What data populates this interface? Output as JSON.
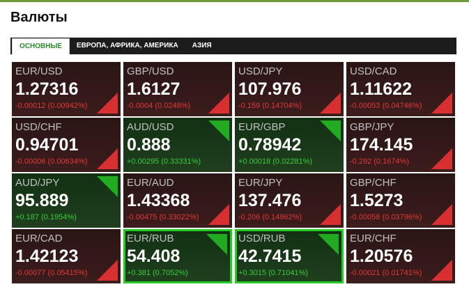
{
  "header": {
    "title": "Валюты"
  },
  "tabs": [
    {
      "label": "ОСНОВНЫЕ",
      "active": true
    },
    {
      "label": "ЕВРОПА, АФРИКА, АМЕРИКА",
      "active": false
    },
    {
      "label": "АЗИЯ",
      "active": false
    }
  ],
  "tiles": [
    {
      "pair": "EUR/USD",
      "rate": "1.27316",
      "change": "-0.00012 (0.00942%)",
      "direction": "down",
      "highlighted": false
    },
    {
      "pair": "GBP/USD",
      "rate": "1.6127",
      "change": "-0.0004 (0.0248%)",
      "direction": "down",
      "highlighted": false
    },
    {
      "pair": "USD/JPY",
      "rate": "107.976",
      "change": "-0.159 (0.14704%)",
      "direction": "down",
      "highlighted": false
    },
    {
      "pair": "USD/CAD",
      "rate": "1.11622",
      "change": "-0.00053 (0.04746%)",
      "direction": "down",
      "highlighted": false
    },
    {
      "pair": "USD/CHF",
      "rate": "0.94701",
      "change": "-0.00006 (0.00634%)",
      "direction": "down",
      "highlighted": false
    },
    {
      "pair": "AUD/USD",
      "rate": "0.888",
      "change": "+0.00295 (0.33331%)",
      "direction": "up",
      "highlighted": false
    },
    {
      "pair": "EUR/GBP",
      "rate": "0.78942",
      "change": "+0.00018 (0.02281%)",
      "direction": "up",
      "highlighted": false
    },
    {
      "pair": "GBP/JPY",
      "rate": "174.145",
      "change": "-0.292 (0.1674%)",
      "direction": "down",
      "highlighted": false
    },
    {
      "pair": "AUD/JPY",
      "rate": "95.889",
      "change": "+0.187 (0.1954%)",
      "direction": "up",
      "highlighted": false
    },
    {
      "pair": "EUR/AUD",
      "rate": "1.43368",
      "change": "-0.00475 (0.33022%)",
      "direction": "down",
      "highlighted": false
    },
    {
      "pair": "EUR/JPY",
      "rate": "137.476",
      "change": "-0.206 (0.14962%)",
      "direction": "down",
      "highlighted": false
    },
    {
      "pair": "GBP/CHF",
      "rate": "1.5273",
      "change": "-0.00058 (0.03796%)",
      "direction": "down",
      "highlighted": false
    },
    {
      "pair": "EUR/CAD",
      "rate": "1.42123",
      "change": "-0.00077 (0.05415%)",
      "direction": "down",
      "highlighted": false
    },
    {
      "pair": "EUR/RUB",
      "rate": "54.408",
      "change": "+0.381 (0.7052%)",
      "direction": "up",
      "highlighted": true
    },
    {
      "pair": "USD/RUB",
      "rate": "42.7415",
      "change": "+0.3015 (0.71041%)",
      "direction": "up",
      "highlighted": true
    },
    {
      "pair": "EUR/CHF",
      "rate": "1.20576",
      "change": "-0.00021 (0.01741%)",
      "direction": "down",
      "highlighted": false
    }
  ]
}
